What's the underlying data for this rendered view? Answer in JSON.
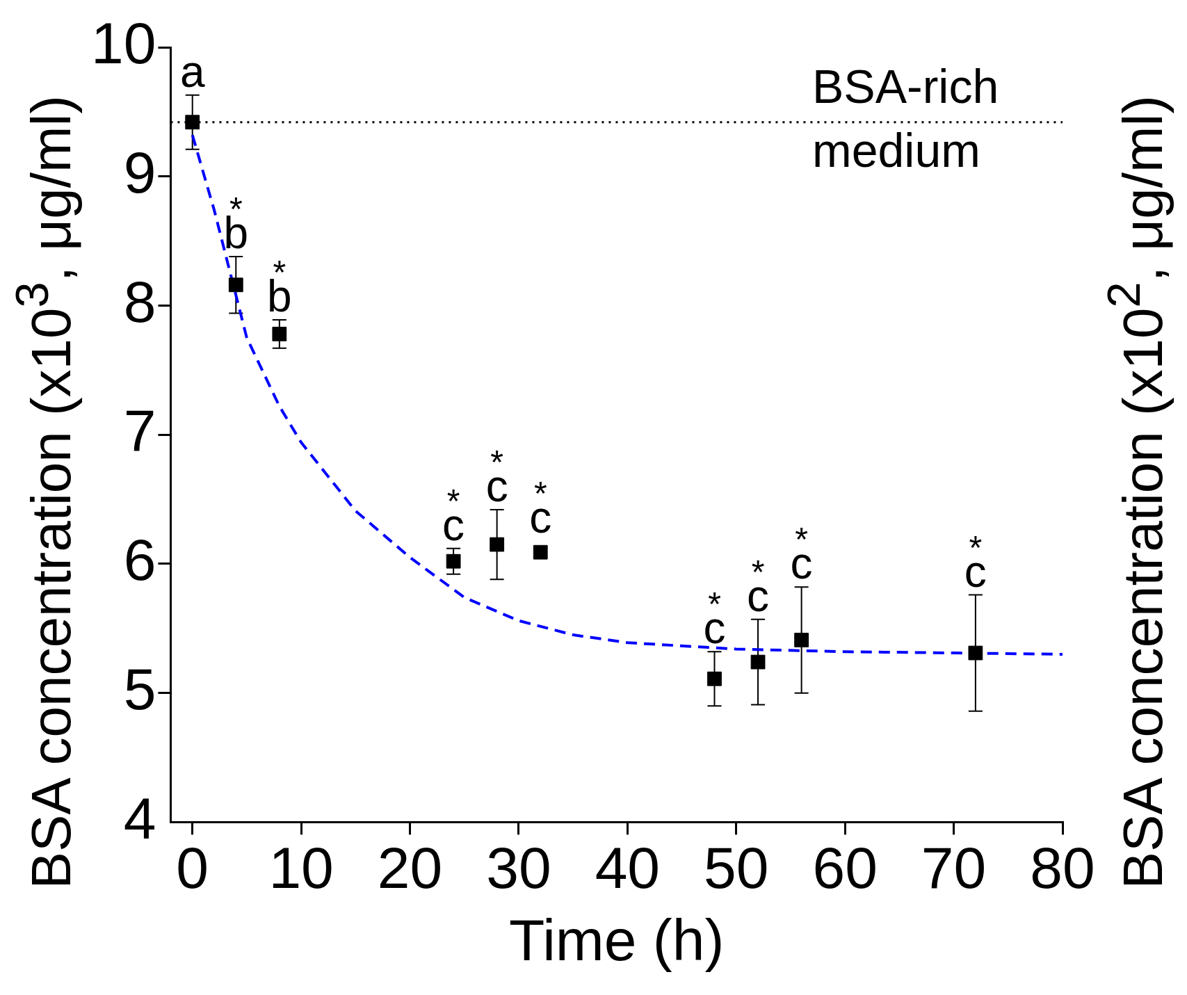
{
  "chart_data": {
    "type": "scatter",
    "xlabel": "Time (h)",
    "ylabel": "BSA concentration (x10$^{3}$, μg/ml)",
    "y2label": "BSA concentration (x10$^{2}$, μg/ml)",
    "xlim": [
      -2,
      80
    ],
    "xticks": [
      0,
      10,
      20,
      30,
      40,
      50,
      60,
      70,
      80
    ],
    "ylim": [
      4,
      10
    ],
    "yticks": [
      4,
      5,
      6,
      7,
      8,
      9,
      10
    ],
    "grid": false,
    "legend": false,
    "marker": "square",
    "series": [
      {
        "color": "#000000",
        "x": [
          0,
          4,
          8,
          24,
          28,
          32,
          48,
          52,
          56,
          72
        ],
        "values": [
          9.42,
          8.16,
          7.78,
          6.02,
          6.15,
          6.09,
          5.11,
          5.24,
          5.41,
          5.31
        ],
        "errors": [
          0.21,
          0.22,
          0.11,
          0.1,
          0.27,
          0.04,
          0.21,
          0.33,
          0.41,
          0.45
        ],
        "value_labels": [
          "a",
          "b$^{*}$",
          "b$^{*}$",
          "c$^{*}$",
          "c$^{*}$",
          "c$^{*}$",
          "c$^{*}$",
          "c$^{*}$",
          "c$^{*}$",
          "c$^{*}$"
        ]
      },
      {
        "type": "line",
        "color": "#0000ff",
        "line_style": "dashed",
        "marker": "none",
        "x": [
          0,
          2,
          5,
          8,
          10,
          15,
          20,
          25,
          30,
          35,
          40,
          50,
          60,
          70,
          80
        ],
        "values": [
          9.32,
          8.74,
          7.75,
          7.22,
          6.94,
          6.41,
          6.05,
          5.74,
          5.56,
          5.45,
          5.39,
          5.34,
          5.32,
          5.31,
          5.3
        ]
      }
    ],
    "ref_lines": [
      {
        "axis": "y",
        "value": 9.42,
        "label": "BSA-rich medium",
        "color": "#000000",
        "line_style": "dotted"
      }
    ]
  }
}
